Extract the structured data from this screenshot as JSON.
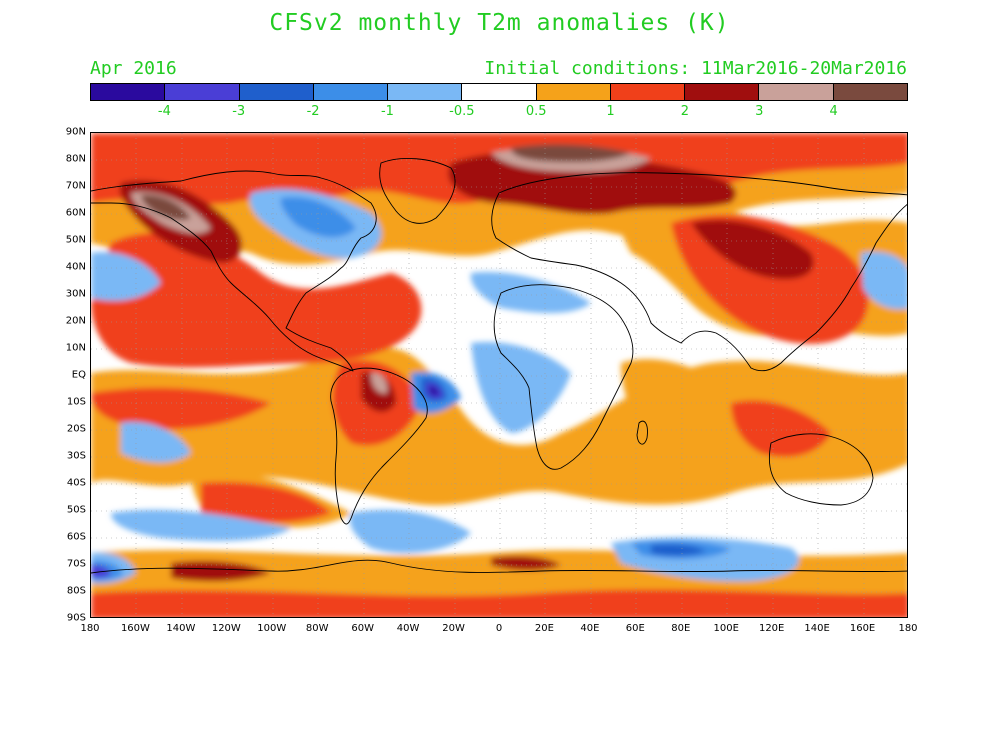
{
  "title": "CFSv2 monthly T2m anomalies (K)",
  "subtitle_left": "Apr 2016",
  "subtitle_right": "Initial conditions: 11Mar2016-20Mar2016",
  "colorbar": {
    "colors": [
      "#2a0a9e",
      "#4a3ed6",
      "#1f5fcc",
      "#3c8ee8",
      "#7ab8f5",
      "#ffffff",
      "#f5a21a",
      "#f0401a",
      "#a00e0e",
      "#c9a19a",
      "#7a4a3e"
    ],
    "labels": [
      "-4",
      "-3",
      "-2",
      "-1",
      "-0.5",
      "0.5",
      "1",
      "2",
      "3",
      "4"
    ]
  },
  "lat_labels": [
    "90N",
    "80N",
    "70N",
    "60N",
    "50N",
    "40N",
    "30N",
    "20N",
    "10N",
    "EQ",
    "10S",
    "20S",
    "30S",
    "40S",
    "50S",
    "60S",
    "70S",
    "80S",
    "90S"
  ],
  "lon_labels": [
    "180",
    "160W",
    "140W",
    "120W",
    "100W",
    "80W",
    "60W",
    "40W",
    "20W",
    "0",
    "20E",
    "40E",
    "60E",
    "80E",
    "100E",
    "120E",
    "140E",
    "160E",
    "180"
  ]
}
